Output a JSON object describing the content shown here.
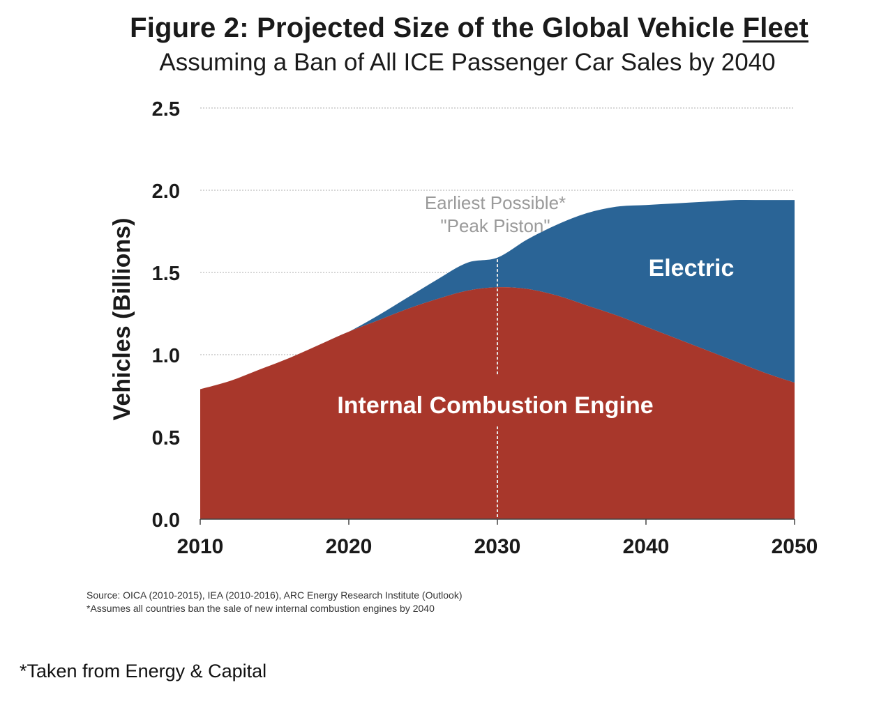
{
  "title_main": "Figure 2: Projected Size of the Global Vehicle ",
  "title_underlined": "Fleet",
  "subtitle": "Assuming a Ban of All ICE Passenger Car Sales by 2040",
  "chart_data": {
    "type": "area",
    "stacked": true,
    "ylabel": "Vehicles (Billions)",
    "xlabel": "",
    "xlim": [
      2010,
      2050
    ],
    "ylim": [
      0,
      2.5
    ],
    "x_ticks": [
      "2010",
      "2020",
      "2030",
      "2040",
      "2050"
    ],
    "y_ticks": [
      "0.0",
      "0.5",
      "1.0",
      "1.5",
      "2.0",
      "2.5"
    ],
    "grid": "horizontal dotted",
    "x": [
      2010,
      2012,
      2014,
      2016,
      2018,
      2020,
      2022,
      2024,
      2026,
      2028,
      2030,
      2032,
      2034,
      2036,
      2038,
      2040,
      2042,
      2044,
      2046,
      2048,
      2050
    ],
    "series": [
      {
        "name": "Internal Combustion Engine",
        "color": "#a8372b",
        "values": [
          0.79,
          0.84,
          0.91,
          0.98,
          1.06,
          1.14,
          1.21,
          1.28,
          1.34,
          1.39,
          1.41,
          1.4,
          1.36,
          1.3,
          1.24,
          1.17,
          1.1,
          1.03,
          0.96,
          0.89,
          0.83
        ]
      },
      {
        "name": "Electric",
        "color": "#2a6496",
        "values": [
          0.0,
          0.0,
          0.0,
          0.0,
          0.0,
          0.0,
          0.03,
          0.07,
          0.12,
          0.17,
          0.18,
          0.3,
          0.43,
          0.56,
          0.66,
          0.74,
          0.82,
          0.9,
          0.98,
          1.05,
          1.11
        ]
      }
    ],
    "series_labels": {
      "ice": "Internal Combustion Engine",
      "electric": "Electric"
    },
    "annotation": {
      "x": 2030,
      "line1": "Earliest Possible*",
      "line2": "\"Peak Piston\""
    }
  },
  "source_note": "Source: OICA (2010-2015), IEA (2010-2016), ARC Energy Research Institute (Outlook)",
  "assumption_note": "*Assumes all countries ban the sale of new internal combustion engines by 2040",
  "credit": "*Taken from Energy & Capital"
}
